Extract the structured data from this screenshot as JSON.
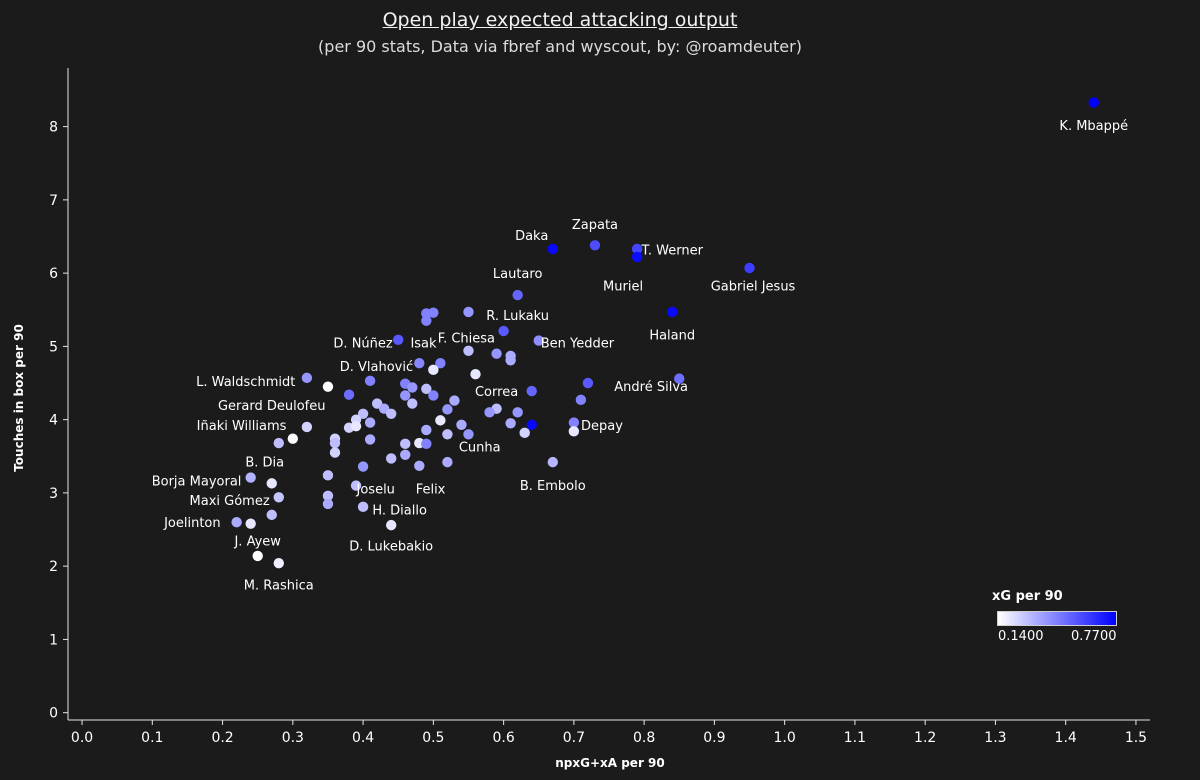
{
  "chart_data": {
    "type": "scatter",
    "title": "Open play expected attacking output",
    "subtitle": "(per 90 stats, Data via fbref and wyscout, by: @roamdeuter)",
    "xlabel": "npxG+xA per 90",
    "ylabel": "Touches in box per 90",
    "xlim": [
      -0.02,
      1.52
    ],
    "ylim": [
      -0.1,
      8.8
    ],
    "x_ticks": [
      "0.0",
      "0.1",
      "0.2",
      "0.3",
      "0.4",
      "0.5",
      "0.6",
      "0.7",
      "0.8",
      "0.9",
      "1.0",
      "1.1",
      "1.2",
      "1.3",
      "1.4",
      "1.5"
    ],
    "y_ticks": [
      "0",
      "1",
      "2",
      "3",
      "4",
      "5",
      "6",
      "7",
      "8"
    ],
    "grid": false,
    "color": {
      "title": "xG per 90",
      "min_label": "0.1400",
      "max_label": "0.7700",
      "min_value": 0.14,
      "max_value": 0.77,
      "min_color": "#ffffff",
      "max_color": "#0000ff"
    },
    "points": [
      {
        "x": 1.44,
        "y": 8.33,
        "c": 0.77,
        "label": "K. Mbappé",
        "lx": 1.44,
        "ly": 8.02
      },
      {
        "x": 0.67,
        "y": 6.33,
        "c": 0.75,
        "label": "Daka",
        "lx": 0.64,
        "ly": 6.52
      },
      {
        "x": 0.73,
        "y": 6.38,
        "c": 0.58,
        "label": "Zapata",
        "lx": 0.73,
        "ly": 6.67
      },
      {
        "x": 0.79,
        "y": 6.33,
        "c": 0.6,
        "label": "T. Werner",
        "lx": 0.84,
        "ly": 6.32
      },
      {
        "x": 0.79,
        "y": 6.22,
        "c": 0.74,
        "label": "Muriel",
        "lx": 0.77,
        "ly": 5.83
      },
      {
        "x": 0.95,
        "y": 6.07,
        "c": 0.62,
        "label": "Gabriel Jesus",
        "lx": 0.955,
        "ly": 5.83
      },
      {
        "x": 0.84,
        "y": 5.47,
        "c": 0.75,
        "label": "Haland",
        "lx": 0.84,
        "ly": 5.16
      },
      {
        "x": 0.62,
        "y": 5.7,
        "c": 0.52,
        "label": "Lautaro",
        "lx": 0.62,
        "ly": 6.0
      },
      {
        "x": 0.6,
        "y": 5.21,
        "c": 0.55,
        "label": "R. Lukaku",
        "lx": 0.62,
        "ly": 5.43
      },
      {
        "x": 0.65,
        "y": 5.08,
        "c": 0.42,
        "label": "Ben Yedder",
        "lx": 0.705,
        "ly": 5.05
      },
      {
        "x": 0.45,
        "y": 5.09,
        "c": 0.55,
        "label": "D. Núñez",
        "lx": 0.4,
        "ly": 5.05
      },
      {
        "x": 0.49,
        "y": 5.45,
        "c": 0.45,
        "label": "Isak",
        "lx": 0.486,
        "ly": 5.05
      },
      {
        "x": 0.5,
        "y": 5.46,
        "c": 0.45,
        "label": "F. Chiesa",
        "lx": 0.547,
        "ly": 5.12
      },
      {
        "x": 0.48,
        "y": 4.77,
        "c": 0.44,
        "label": "D. Vlahović",
        "lx": 0.419,
        "ly": 4.73
      },
      {
        "x": 0.32,
        "y": 4.57,
        "c": 0.4,
        "label": "L. Waldschmidt",
        "lx": 0.233,
        "ly": 4.53
      },
      {
        "x": 0.35,
        "y": 4.45,
        "c": 0.14,
        "label": "Gerard Deulofeu",
        "lx": 0.27,
        "ly": 4.2
      },
      {
        "x": 0.32,
        "y": 3.9,
        "c": 0.25,
        "label": "Iñaki Williams",
        "lx": 0.227,
        "ly": 3.93
      },
      {
        "x": 0.64,
        "y": 4.39,
        "c": 0.52,
        "label": "Correa",
        "lx": 0.59,
        "ly": 4.39
      },
      {
        "x": 0.72,
        "y": 4.5,
        "c": 0.55,
        "label": "André Silva",
        "lx": 0.81,
        "ly": 4.46
      },
      {
        "x": 0.7,
        "y": 3.96,
        "c": 0.45,
        "label": "Depay",
        "lx": 0.74,
        "ly": 3.93
      },
      {
        "x": 0.55,
        "y": 3.8,
        "c": 0.4,
        "label": "Cunha",
        "lx": 0.566,
        "ly": 3.63
      },
      {
        "x": 0.67,
        "y": 3.42,
        "c": 0.32,
        "label": "B. Embolo",
        "lx": 0.67,
        "ly": 3.11
      },
      {
        "x": 0.28,
        "y": 3.68,
        "c": 0.3,
        "label": "B. Dia",
        "lx": 0.26,
        "ly": 3.43
      },
      {
        "x": 0.24,
        "y": 3.21,
        "c": 0.33,
        "label": "Borja Mayoral",
        "lx": 0.163,
        "ly": 3.17
      },
      {
        "x": 0.28,
        "y": 2.94,
        "c": 0.28,
        "label": "Maxi Gómez",
        "lx": 0.21,
        "ly": 2.9
      },
      {
        "x": 0.22,
        "y": 2.6,
        "c": 0.35,
        "label": "Joelinton",
        "lx": 0.157,
        "ly": 2.6
      },
      {
        "x": 0.25,
        "y": 2.14,
        "c": 0.14,
        "label": "J. Ayew",
        "lx": 0.25,
        "ly": 2.35
      },
      {
        "x": 0.28,
        "y": 2.04,
        "c": 0.18,
        "label": "M. Rashica",
        "lx": 0.28,
        "ly": 1.75
      },
      {
        "x": 0.39,
        "y": 3.1,
        "c": 0.3,
        "label": "Joselu",
        "lx": 0.418,
        "ly": 3.06
      },
      {
        "x": 0.48,
        "y": 3.37,
        "c": 0.35,
        "label": "Felix",
        "lx": 0.496,
        "ly": 3.06
      },
      {
        "x": 0.4,
        "y": 2.81,
        "c": 0.3,
        "label": "H. Diallo",
        "lx": 0.452,
        "ly": 2.77
      },
      {
        "x": 0.44,
        "y": 2.56,
        "c": 0.2,
        "label": "D. Lukebakio",
        "lx": 0.44,
        "ly": 2.28
      },
      {
        "x": 0.49,
        "y": 5.35,
        "c": 0.45
      },
      {
        "x": 0.55,
        "y": 5.47,
        "c": 0.4
      },
      {
        "x": 0.55,
        "y": 4.94,
        "c": 0.3
      },
      {
        "x": 0.51,
        "y": 4.77,
        "c": 0.45
      },
      {
        "x": 0.5,
        "y": 4.68,
        "c": 0.2
      },
      {
        "x": 0.56,
        "y": 4.62,
        "c": 0.2
      },
      {
        "x": 0.59,
        "y": 4.9,
        "c": 0.4
      },
      {
        "x": 0.61,
        "y": 4.87,
        "c": 0.35
      },
      {
        "x": 0.61,
        "y": 4.81,
        "c": 0.35
      },
      {
        "x": 0.41,
        "y": 4.53,
        "c": 0.45
      },
      {
        "x": 0.46,
        "y": 4.49,
        "c": 0.45
      },
      {
        "x": 0.47,
        "y": 4.44,
        "c": 0.4
      },
      {
        "x": 0.49,
        "y": 4.42,
        "c": 0.3
      },
      {
        "x": 0.38,
        "y": 4.34,
        "c": 0.5
      },
      {
        "x": 0.46,
        "y": 4.33,
        "c": 0.4
      },
      {
        "x": 0.5,
        "y": 4.33,
        "c": 0.45
      },
      {
        "x": 0.53,
        "y": 4.26,
        "c": 0.35
      },
      {
        "x": 0.42,
        "y": 4.22,
        "c": 0.3
      },
      {
        "x": 0.47,
        "y": 4.22,
        "c": 0.3
      },
      {
        "x": 0.43,
        "y": 4.15,
        "c": 0.35
      },
      {
        "x": 0.52,
        "y": 4.14,
        "c": 0.4
      },
      {
        "x": 0.59,
        "y": 4.15,
        "c": 0.3
      },
      {
        "x": 0.58,
        "y": 4.1,
        "c": 0.4
      },
      {
        "x": 0.62,
        "y": 4.1,
        "c": 0.4
      },
      {
        "x": 0.4,
        "y": 4.08,
        "c": 0.3
      },
      {
        "x": 0.44,
        "y": 4.08,
        "c": 0.3
      },
      {
        "x": 0.39,
        "y": 4.0,
        "c": 0.25
      },
      {
        "x": 0.41,
        "y": 3.96,
        "c": 0.35
      },
      {
        "x": 0.51,
        "y": 3.99,
        "c": 0.2
      },
      {
        "x": 0.54,
        "y": 3.93,
        "c": 0.35
      },
      {
        "x": 0.61,
        "y": 3.95,
        "c": 0.35
      },
      {
        "x": 0.64,
        "y": 3.93,
        "c": 0.75
      },
      {
        "x": 0.38,
        "y": 3.89,
        "c": 0.25
      },
      {
        "x": 0.39,
        "y": 3.91,
        "c": 0.2
      },
      {
        "x": 0.49,
        "y": 3.86,
        "c": 0.35
      },
      {
        "x": 0.52,
        "y": 3.8,
        "c": 0.3
      },
      {
        "x": 0.63,
        "y": 3.82,
        "c": 0.25
      },
      {
        "x": 0.7,
        "y": 3.84,
        "c": 0.2
      },
      {
        "x": 0.71,
        "y": 4.27,
        "c": 0.45
      },
      {
        "x": 0.85,
        "y": 4.56,
        "c": 0.5
      },
      {
        "x": 0.3,
        "y": 3.74,
        "c": 0.15
      },
      {
        "x": 0.36,
        "y": 3.74,
        "c": 0.25
      },
      {
        "x": 0.36,
        "y": 3.68,
        "c": 0.3
      },
      {
        "x": 0.41,
        "y": 3.73,
        "c": 0.35
      },
      {
        "x": 0.46,
        "y": 3.67,
        "c": 0.3
      },
      {
        "x": 0.48,
        "y": 3.68,
        "c": 0.2
      },
      {
        "x": 0.49,
        "y": 3.67,
        "c": 0.45
      },
      {
        "x": 0.36,
        "y": 3.55,
        "c": 0.25
      },
      {
        "x": 0.44,
        "y": 3.47,
        "c": 0.3
      },
      {
        "x": 0.46,
        "y": 3.52,
        "c": 0.35
      },
      {
        "x": 0.52,
        "y": 3.42,
        "c": 0.35
      },
      {
        "x": 0.4,
        "y": 3.36,
        "c": 0.4
      },
      {
        "x": 0.35,
        "y": 3.24,
        "c": 0.3
      },
      {
        "x": 0.27,
        "y": 3.13,
        "c": 0.2
      },
      {
        "x": 0.35,
        "y": 2.96,
        "c": 0.3
      },
      {
        "x": 0.35,
        "y": 2.85,
        "c": 0.35
      },
      {
        "x": 0.24,
        "y": 2.58,
        "c": 0.2
      },
      {
        "x": 0.27,
        "y": 2.7,
        "c": 0.3
      }
    ]
  }
}
